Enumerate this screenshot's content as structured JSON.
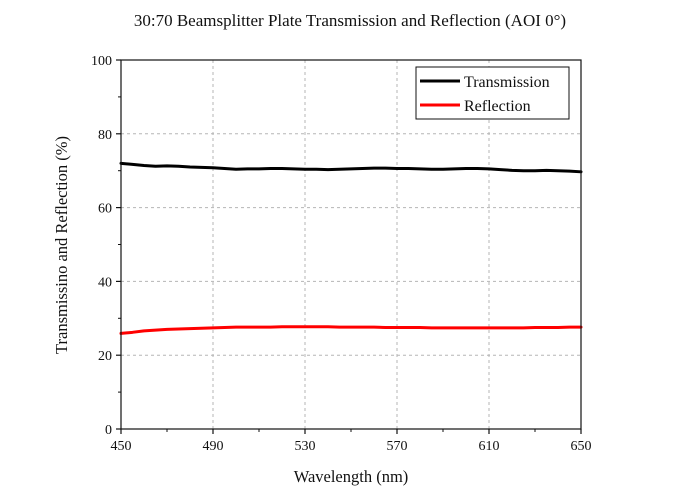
{
  "chart_data": {
    "type": "line",
    "title": "30:70 Beamsplitter Plate Transmission and Reflection (AOI 0°)",
    "xlabel": "Wavelength (nm)",
    "ylabel": "Transmissino and Reflection (%)",
    "xlim": [
      450,
      650
    ],
    "ylim": [
      0,
      100
    ],
    "xticks": [
      450,
      490,
      530,
      570,
      610,
      650
    ],
    "yticks": [
      0,
      20,
      40,
      60,
      80,
      100
    ],
    "grid": true,
    "legend_position": "top-right",
    "x": [
      450,
      455,
      460,
      465,
      470,
      475,
      480,
      485,
      490,
      495,
      500,
      505,
      510,
      515,
      520,
      525,
      530,
      535,
      540,
      545,
      550,
      555,
      560,
      565,
      570,
      575,
      580,
      585,
      590,
      595,
      600,
      605,
      610,
      615,
      620,
      625,
      630,
      635,
      640,
      645,
      650
    ],
    "series": [
      {
        "name": "Transmission",
        "color": "#000000",
        "values": [
          72.0,
          71.7,
          71.4,
          71.2,
          71.3,
          71.2,
          71.0,
          70.9,
          70.8,
          70.6,
          70.4,
          70.5,
          70.5,
          70.6,
          70.6,
          70.5,
          70.4,
          70.4,
          70.3,
          70.4,
          70.5,
          70.6,
          70.7,
          70.7,
          70.6,
          70.6,
          70.5,
          70.4,
          70.4,
          70.5,
          70.6,
          70.6,
          70.5,
          70.3,
          70.1,
          70.0,
          70.0,
          70.1,
          70.0,
          69.9,
          69.7
        ]
      },
      {
        "name": "Reflection",
        "color": "#ff0000",
        "values": [
          25.9,
          26.2,
          26.6,
          26.8,
          27.0,
          27.1,
          27.2,
          27.3,
          27.4,
          27.5,
          27.6,
          27.6,
          27.6,
          27.6,
          27.7,
          27.7,
          27.7,
          27.7,
          27.7,
          27.6,
          27.6,
          27.6,
          27.6,
          27.5,
          27.5,
          27.5,
          27.5,
          27.4,
          27.4,
          27.4,
          27.4,
          27.4,
          27.4,
          27.4,
          27.4,
          27.4,
          27.5,
          27.5,
          27.5,
          27.6,
          27.6
        ]
      }
    ]
  }
}
